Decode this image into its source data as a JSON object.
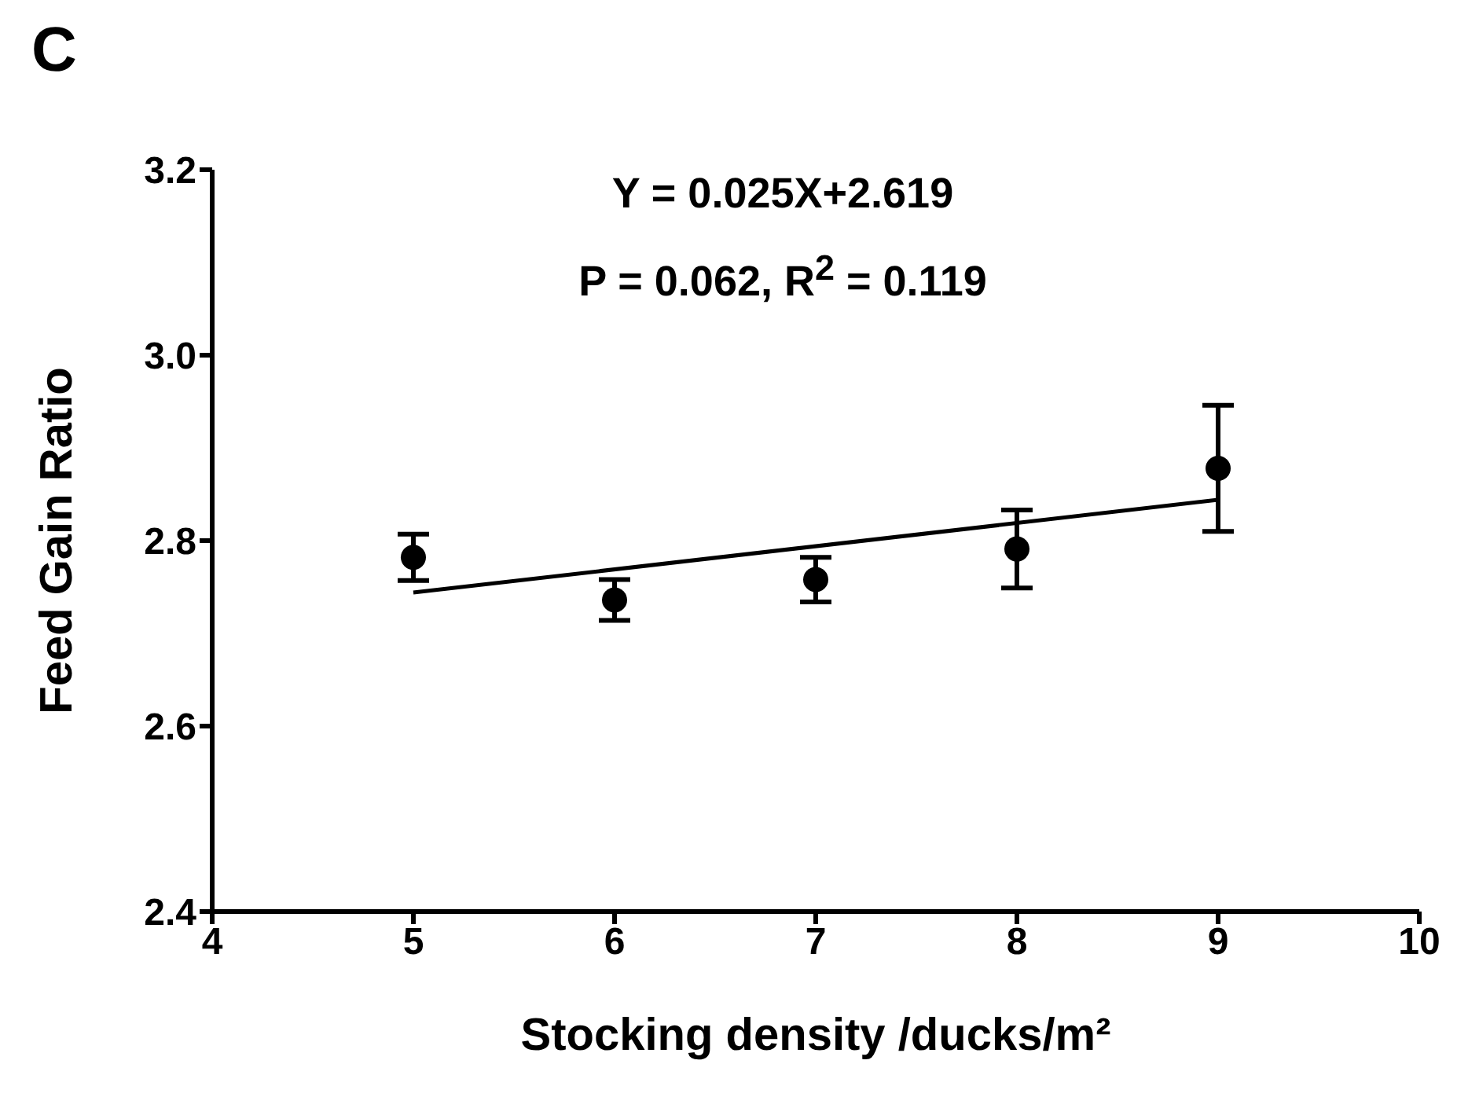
{
  "chart_data": {
    "type": "scatter",
    "title": "C",
    "xlabel": "Stocking density /ducks/m²",
    "ylabel": "Feed Gain Ratio",
    "annotations": [
      "Y = 0.025X+2.619",
      "P = 0.062, R$^{2}$ = 0.119"
    ],
    "xlim": [
      4,
      10
    ],
    "xticks": [
      4,
      5,
      6,
      7,
      8,
      9,
      10
    ],
    "ylim": [
      2.4,
      3.2
    ],
    "yticks": [
      2.4,
      2.6,
      2.8,
      {
        "value": 3.0,
        "label": "3.0"
      },
      3.2
    ],
    "grid": false,
    "legend": false,
    "marker": "circle",
    "series": [
      {
        "color": "#000000",
        "x": [
          5,
          6,
          7,
          8,
          9
        ],
        "values": [
          2.782,
          2.736,
          2.758,
          2.791,
          2.878
        ],
        "errors": [
          0.025,
          0.022,
          0.024,
          0.042,
          0.068
        ]
      },
      {
        "type": "line",
        "color": "#000000",
        "x": [
          5,
          9
        ],
        "values": [
          2.744,
          2.844
        ],
        "line_style": "solid",
        "marker": "none"
      }
    ]
  }
}
